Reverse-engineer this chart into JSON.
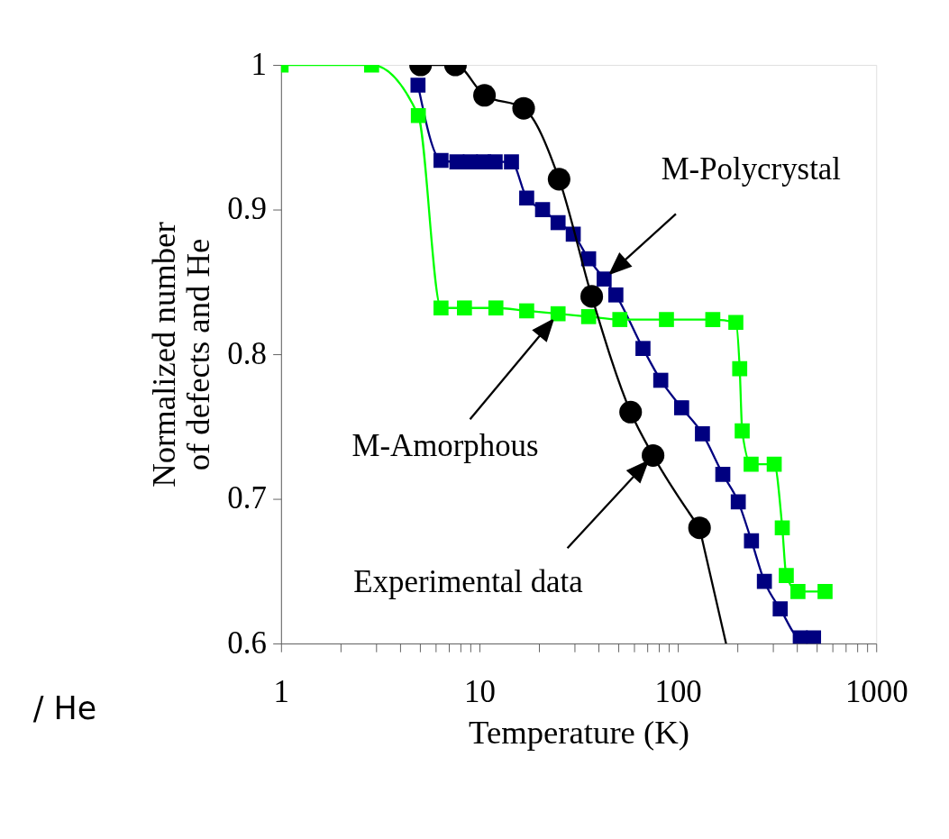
{
  "chart_data": {
    "type": "line",
    "xlabel": "Temperature (K)",
    "ylabel": "Normalized number\nof defects and He",
    "log": "x",
    "grid": false,
    "line_style": "solid",
    "xlim": [
      1,
      1000
    ],
    "ylim": [
      0.6,
      1
    ],
    "xticks": [
      1,
      {
        "value": 2,
        "label": null
      },
      {
        "value": 3,
        "label": null
      },
      {
        "value": 4,
        "label": null
      },
      {
        "value": 5,
        "label": null
      },
      {
        "value": 6,
        "label": null
      },
      {
        "value": 7,
        "label": null
      },
      {
        "value": 8,
        "label": null
      },
      {
        "value": 9,
        "label": null
      },
      10,
      {
        "value": 20,
        "label": null
      },
      {
        "value": 30,
        "label": null
      },
      {
        "value": 40,
        "label": null
      },
      {
        "value": 50,
        "label": null
      },
      {
        "value": 60,
        "label": null
      },
      {
        "value": 70,
        "label": null
      },
      {
        "value": 80,
        "label": null
      },
      {
        "value": 90,
        "label": null
      },
      100,
      {
        "value": 200,
        "label": null
      },
      {
        "value": 300,
        "label": null
      },
      {
        "value": 400,
        "label": null
      },
      {
        "value": 500,
        "label": null
      },
      {
        "value": 600,
        "label": null
      },
      {
        "value": 700,
        "label": null
      },
      {
        "value": 800,
        "label": null
      },
      {
        "value": 900,
        "label": null
      },
      1000
    ],
    "yticks": [
      0.6,
      0.7,
      0.8,
      0.9,
      1
    ],
    "annotations": [
      "/ He"
    ],
    "series": [
      {
        "name": "M-Polycrystal",
        "color": "#000080",
        "marker": "square",
        "x": [
          4.9,
          6.4,
          7.7,
          9,
          10.5,
          12,
          14.5,
          17.3,
          20.8,
          24.9,
          29.7,
          35.5,
          42.5,
          48.7,
          56,
          66.7,
          82,
          104.5,
          133,
          168.5,
          201.6,
          235,
          273,
          328,
          414,
          483
        ],
        "values": [
          0.986,
          0.934,
          0.933,
          0.933,
          0.933,
          0.933,
          0.933,
          0.908,
          0.9,
          0.891,
          0.883,
          0.866,
          0.852,
          0.841,
          null,
          0.804,
          0.782,
          0.763,
          0.745,
          0.717,
          0.698,
          0.671,
          0.643,
          0.624,
          0.604,
          0.604
        ]
      },
      {
        "name": "M-Amorphous",
        "color": "#00ff00",
        "marker": "square",
        "x": [
          1,
          2.86,
          4.92,
          6.4,
          8.4,
          12.1,
          17.3,
          24.9,
          35.5,
          51,
          87.6,
          150,
          196,
          205,
          211,
          234,
          306,
          336,
          352,
          403,
          552
        ],
        "values": [
          1,
          1,
          0.965,
          0.832,
          0.832,
          0.832,
          0.83,
          0.828,
          0.826,
          0.824,
          0.824,
          0.824,
          0.822,
          0.79,
          0.747,
          0.724,
          0.724,
          0.68,
          0.647,
          0.636,
          0.636
        ]
      },
      {
        "name": "Experimental data",
        "color": "#000000",
        "marker": "circle",
        "x": [
          5.05,
          7.57,
          10.6,
          16.7,
          25.2,
          36.8,
          57.8,
          75,
          128.6
        ],
        "values": [
          1,
          1,
          0.979,
          0.97,
          0.921,
          0.84,
          0.76,
          0.73,
          0.68
        ]
      },
      {
        "type": "line",
        "color": "#000000",
        "marker": "none",
        "x": [
          128.6,
          175
        ],
        "values": [
          0.68,
          0.6
        ]
      }
    ]
  }
}
